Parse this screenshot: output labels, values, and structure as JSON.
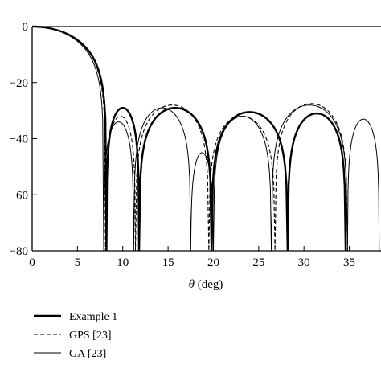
{
  "chart_data": {
    "type": "line",
    "title": "",
    "xlabel_symbol": "θ",
    "xlabel_unit": " (deg)",
    "ylabel": "",
    "xlim": [
      0,
      38.5
    ],
    "ylim": [
      -80,
      0
    ],
    "xticks": [
      0,
      5,
      10,
      15,
      20,
      25,
      30,
      35
    ],
    "yticks": [
      0,
      -20,
      -40,
      -60,
      -80
    ],
    "xtick_labels": [
      "0",
      "5",
      "10",
      "15",
      "20",
      "25",
      "30",
      "35"
    ],
    "ytick_labels": [
      "0",
      "−20",
      "−40",
      "−60",
      "−80"
    ],
    "grid": false,
    "legend_position": "bottom-left",
    "series": [
      {
        "name": "Example 1",
        "style": "solid-thick",
        "color": "#000000",
        "main_lobe": {
          "zero": 8.2
        },
        "nulls": [
          8.2,
          11.8,
          19.8,
          28.2,
          34.6
        ],
        "lobe_peaks": [
          -29,
          -29,
          -30.5,
          -31
        ]
      },
      {
        "name": "GPS [23]",
        "style": "dashed",
        "color": "#000000",
        "main_lobe": {
          "zero": 8.1
        },
        "nulls": [
          8.1,
          11.4,
          19.5,
          26.8,
          34.8
        ],
        "lobe_peaks": [
          -32,
          -28,
          -32,
          -27.5,
          -36
        ]
      },
      {
        "name": "GA [23]",
        "style": "solid-thin",
        "color": "#000000",
        "main_lobe": {
          "zero": 7.9
        },
        "nulls": [
          7.9,
          11.2,
          17.5,
          20.0,
          26.4,
          34.8,
          38.3
        ],
        "lobe_peaks": [
          -34,
          -29,
          -45,
          -32,
          -28,
          -33
        ]
      }
    ]
  }
}
